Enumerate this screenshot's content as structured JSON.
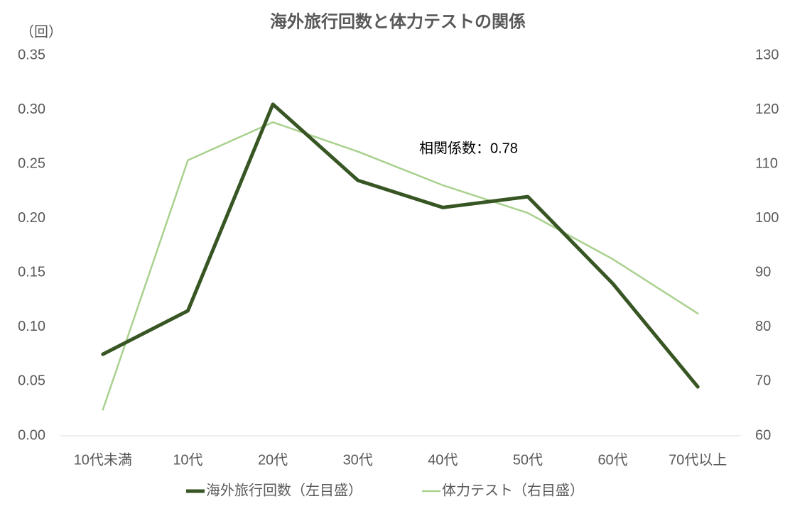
{
  "chart_data": {
    "type": "line",
    "title": "海外旅行回数と体力テストの関係",
    "y_unit_label": "（回）",
    "annotation": "相関係数：0.78",
    "categories": [
      "10代未満",
      "10代",
      "20代",
      "30代",
      "40代",
      "50代",
      "60代",
      "70代以上"
    ],
    "series": [
      {
        "name": "海外旅行回数（左目盛）",
        "color": "#375623",
        "values": [
          0.075,
          0.115,
          0.305,
          0.235,
          0.21,
          0.22,
          0.14,
          0.045
        ]
      },
      {
        "name": "体力テスト（右目盛）",
        "color": "#a9d18e",
        "axis": "y2",
        "values": [
          64.8,
          110.7,
          117.7,
          112.3,
          106.1,
          101,
          92.5,
          82.5
        ]
      }
    ],
    "ylim": [
      0,
      0.35
    ],
    "yticks": [
      {
        "value": 0,
        "label": "0.00"
      },
      0.05,
      {
        "value": 0.1,
        "label": "0.10"
      },
      0.15,
      {
        "value": 0.2,
        "label": "0.20"
      },
      0.25,
      {
        "value": 0.3,
        "label": "0.30"
      },
      0.35
    ],
    "y2lim": [
      60,
      130
    ],
    "y2ticks": [
      60,
      70,
      80,
      90,
      100,
      110,
      120,
      130
    ],
    "grid": false,
    "legend": "bottom"
  }
}
